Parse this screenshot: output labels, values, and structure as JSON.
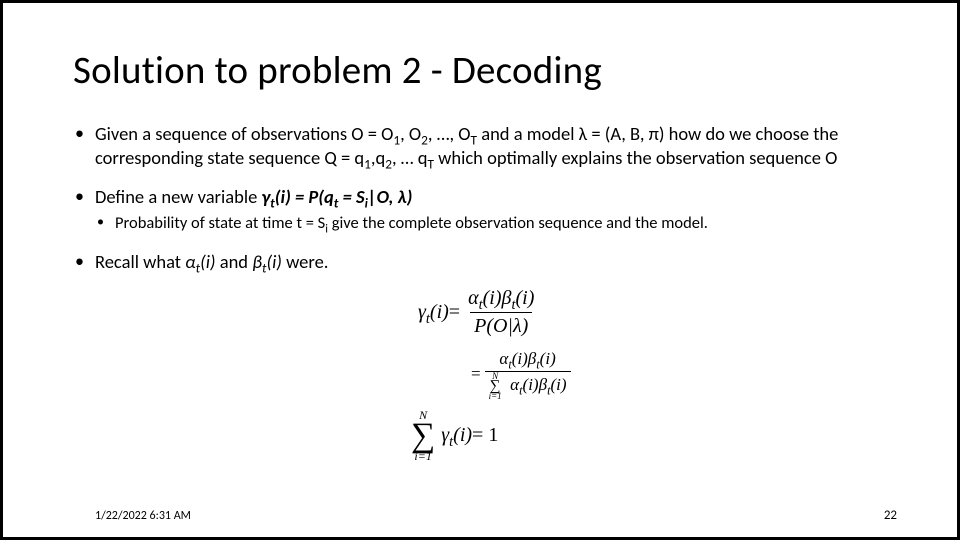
{
  "title": "Solution to problem 2 - Decoding",
  "bullets": {
    "b1_pre": "Given a sequence of observations O = O",
    "b1_mid1": ", O",
    "b1_mid2": ", …, O",
    "b1_mid3": " and a model λ = (A, B, π) how do we choose the corresponding state sequence Q = q",
    "b1_mid4": ",q",
    "b1_mid5": ", … q",
    "b1_end": " which optimally explains the observation sequence O",
    "b1_s1": "1",
    "b1_s2": "2",
    "b1_sT": "T",
    "b1_q1": "1",
    "b1_q2": "2",
    "b1_qT": "T",
    "b2_pre": "Define a new variable ",
    "b2_var": "γ",
    "b2_sub_t": "t",
    "b2_open": "(",
    "b2_i": "i",
    "b2_close": ")",
    "b2_eq": " = P(q",
    "b2_qsub": "t",
    "b2_eq2": " = S",
    "b2_Ssub": "i",
    "b2_cond": "|O",
    "b2_lam": ", λ)",
    "b2sub_pre": "Probability of state at time t  = S",
    "b2sub_i": "i",
    "b2sub_end": " give the complete observation sequence and the model.",
    "b3_pre": "Recall what ",
    "b3_a": "α",
    "b3_asub": "t",
    "b3_ai": "(i)",
    "b3_and": " and ",
    "b3_b": "β",
    "b3_bsub": "t",
    "b3_bi": "(i)",
    "b3_end": " were."
  },
  "eq": {
    "g": "γ",
    "a": "α",
    "b": "β",
    "t": "t",
    "i": "i",
    "open": "(",
    "close": ")",
    "equals": " = ",
    "POl": "P(O|λ)",
    "one": " = 1",
    "N": "N",
    "sumbot": "i=1",
    "sumN": "N"
  },
  "footer": {
    "date": "1/22/2022 6:31 AM",
    "page": "22"
  },
  "style": {
    "text_color": "#000000",
    "background": "#ffffff",
    "border_color": "#000000",
    "title_fontsize": 39,
    "body_fontsize": 18.5,
    "subbullet_fontsize": 16.5,
    "math_font": "Cambria Math",
    "body_font": "Calibri",
    "slide_width": 960,
    "slide_height": 540
  }
}
